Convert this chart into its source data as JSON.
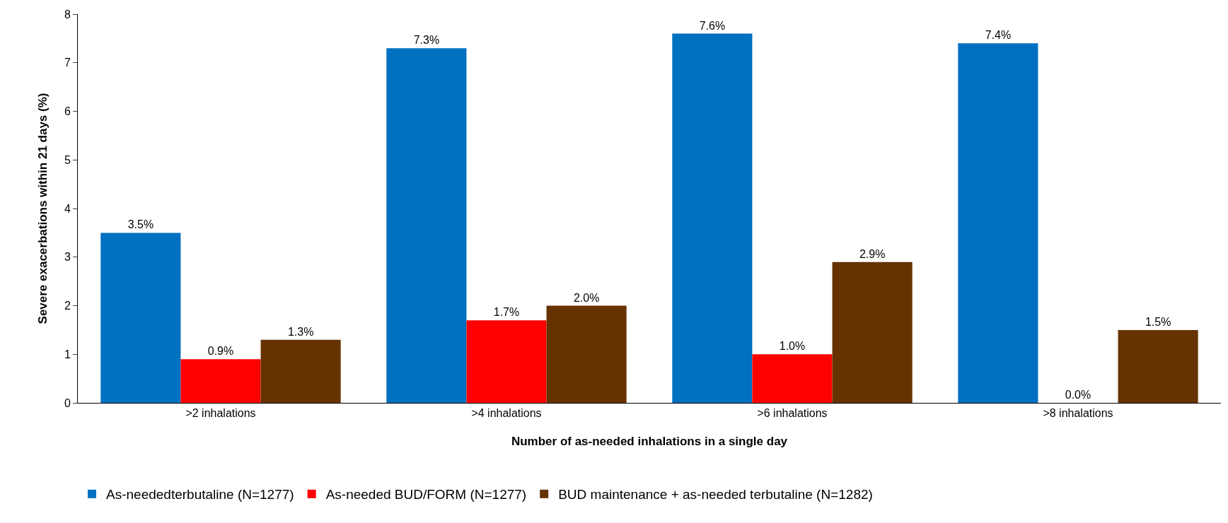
{
  "chart_data": {
    "type": "bar",
    "xlabel": "Number of as-needed inhalations in a single day",
    "ylabel": "Severe exacerbations within 21 days (%)",
    "categories": [
      ">2 inhalations",
      ">4 inhalations",
      ">6 inhalations",
      ">8 inhalations"
    ],
    "series": [
      {
        "name": "As-neededterbutaline (N=1277)",
        "color": "#0070c0",
        "values": [
          3.5,
          7.3,
          7.6,
          7.4
        ],
        "value_labels": [
          "3.5%",
          "7.3%",
          "7.6%",
          "7.4%"
        ]
      },
      {
        "name": "As-needed BUD/FORM (N=1277)",
        "color": "#ff0000",
        "values": [
          0.9,
          1.7,
          1.0,
          0.0
        ],
        "value_labels": [
          "0.9%",
          "1.7%",
          "1.0%",
          "0.0%"
        ]
      },
      {
        "name": "BUD maintenance + as-needed terbutaline (N=1282)",
        "color": "#663300",
        "values": [
          1.3,
          2.0,
          2.9,
          1.5
        ],
        "value_labels": [
          "1.3%",
          "2.0%",
          "2.9%",
          "1.5%"
        ]
      }
    ],
    "ylim": [
      0,
      8
    ],
    "yticks": [
      0,
      1,
      2,
      3,
      4,
      5,
      6,
      7,
      8
    ],
    "grid": false,
    "legend": "bottom"
  }
}
